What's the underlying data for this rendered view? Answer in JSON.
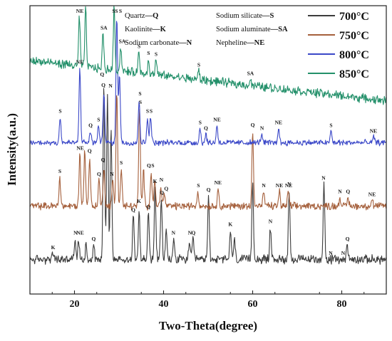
{
  "chart_data": {
    "type": "line",
    "xlabel": "Two-Theta(degree)",
    "ylabel": "Intensity(a.u.)",
    "xlim": [
      10,
      90
    ],
    "x_ticks": [
      20,
      40,
      60,
      80
    ],
    "y_ticks_shown": false,
    "grid": false,
    "legend_position": "top-right",
    "phase_key": [
      {
        "name": "Quartz",
        "symbol": "Q"
      },
      {
        "name": "Kaolinite",
        "symbol": "K"
      },
      {
        "name": "Sodium carbonate",
        "symbol": "N"
      },
      {
        "name": "Sodium silicate",
        "symbol": "S"
      },
      {
        "name": "Sodium aluminate",
        "symbol": "SA"
      },
      {
        "name": "Nepheline",
        "symbol": "NE"
      }
    ],
    "series": [
      {
        "name": "700°C",
        "color": "#3c3c3c",
        "baseline": 0.12,
        "noise": 0.012,
        "slope": 0.0,
        "peaks": [
          [
            15.2,
            0.02
          ],
          [
            20.1,
            0.06
          ],
          [
            20.9,
            0.07
          ],
          [
            22.6,
            0.05
          ],
          [
            24.3,
            0.05
          ],
          [
            26.6,
            0.62
          ],
          [
            27.4,
            0.58
          ],
          [
            28.2,
            0.46
          ],
          [
            33.2,
            0.15
          ],
          [
            34.5,
            0.18
          ],
          [
            36.6,
            0.16
          ],
          [
            38.1,
            0.25
          ],
          [
            39.5,
            0.21
          ],
          [
            40.6,
            0.1
          ],
          [
            42.3,
            0.07
          ],
          [
            45.8,
            0.06
          ],
          [
            46.6,
            0.07
          ],
          [
            50.1,
            0.22
          ],
          [
            55.0,
            0.1
          ],
          [
            55.9,
            0.07
          ],
          [
            60.0,
            0.27
          ],
          [
            64.0,
            0.11
          ],
          [
            68.2,
            0.24
          ],
          [
            76.0,
            0.26
          ],
          [
            81.2,
            0.05
          ]
        ],
        "labels": [
          [
            15.2,
            "K"
          ],
          [
            20.2,
            "N"
          ],
          [
            21.3,
            "NE"
          ],
          [
            24.3,
            "Q"
          ],
          [
            26.2,
            "Q"
          ],
          [
            28.1,
            "N"
          ],
          [
            33.2,
            "Q"
          ],
          [
            34.5,
            "K"
          ],
          [
            36.6,
            "Q"
          ],
          [
            38.1,
            "K"
          ],
          [
            39.6,
            "Q"
          ],
          [
            42.2,
            "N"
          ],
          [
            45.9,
            "N"
          ],
          [
            46.7,
            "Q"
          ],
          [
            50.1,
            "Q"
          ],
          [
            55.0,
            "K"
          ],
          [
            64.0,
            "N"
          ],
          [
            68.2,
            "N"
          ],
          [
            75.9,
            "N"
          ],
          [
            77.5,
            "N"
          ],
          [
            80.3,
            "N"
          ],
          [
            81.3,
            "Q"
          ]
        ]
      },
      {
        "name": "750°C",
        "color": "#a5603c",
        "baseline": 0.305,
        "noise": 0.01,
        "slope": 0.0,
        "peaks": [
          [
            16.7,
            0.1
          ],
          [
            21.2,
            0.18
          ],
          [
            22.3,
            0.2
          ],
          [
            23.4,
            0.17
          ],
          [
            25.5,
            0.09
          ],
          [
            26.6,
            0.14
          ],
          [
            28.6,
            0.09
          ],
          [
            29.5,
            0.4
          ],
          [
            30.5,
            0.13
          ],
          [
            34.6,
            0.34
          ],
          [
            35.5,
            0.12
          ],
          [
            37.2,
            0.12
          ],
          [
            38.0,
            0.09
          ],
          [
            39.4,
            0.07
          ],
          [
            40.2,
            0.04
          ],
          [
            47.7,
            0.05
          ],
          [
            52.3,
            0.06
          ],
          [
            60.0,
            0.26
          ],
          [
            62.5,
            0.05
          ],
          [
            66.0,
            0.05
          ],
          [
            68.0,
            0.05
          ],
          [
            79.6,
            0.03
          ],
          [
            81.4,
            0.03
          ],
          [
            86.8,
            0.02
          ]
        ],
        "labels": [
          [
            16.7,
            "S"
          ],
          [
            21.3,
            "NE"
          ],
          [
            23.4,
            "Q"
          ],
          [
            25.5,
            "Q"
          ],
          [
            26.4,
            "Q"
          ],
          [
            28.4,
            "N"
          ],
          [
            30.5,
            "S"
          ],
          [
            34.8,
            "S"
          ],
          [
            36.7,
            "Q"
          ],
          [
            37.6,
            "S"
          ],
          [
            39.5,
            "N"
          ],
          [
            40.6,
            "Q"
          ],
          [
            47.8,
            "S"
          ],
          [
            52.2,
            "NE"
          ],
          [
            60.0,
            "Q"
          ],
          [
            62.5,
            "N"
          ],
          [
            66.0,
            "NE"
          ],
          [
            68.1,
            "NE"
          ],
          [
            79.6,
            "N"
          ],
          [
            81.4,
            "Q"
          ],
          [
            86.8,
            "NE"
          ]
        ]
      },
      {
        "name": "800°C",
        "color": "#3b48c8",
        "baseline": 0.525,
        "noise": 0.008,
        "slope": 0.0,
        "peaks": [
          [
            16.8,
            0.09
          ],
          [
            21.2,
            0.26
          ],
          [
            23.6,
            0.04
          ],
          [
            25.4,
            0.06
          ],
          [
            26.6,
            0.18
          ],
          [
            29.5,
            0.44
          ],
          [
            30.1,
            0.24
          ],
          [
            34.5,
            0.15
          ],
          [
            36.4,
            0.09
          ],
          [
            37.1,
            0.09
          ],
          [
            48.2,
            0.05
          ],
          [
            49.5,
            0.03
          ],
          [
            52.0,
            0.06
          ],
          [
            62.0,
            0.03
          ],
          [
            65.8,
            0.05
          ],
          [
            77.6,
            0.04
          ],
          [
            87.2,
            0.02
          ]
        ],
        "labels": [
          [
            16.8,
            "S"
          ],
          [
            21.2,
            "NE"
          ],
          [
            23.6,
            "Q"
          ],
          [
            25.4,
            "S"
          ],
          [
            26.5,
            "Q"
          ],
          [
            29.4,
            "S"
          ],
          [
            30.3,
            "S"
          ],
          [
            34.7,
            "S"
          ],
          [
            36.4,
            "S"
          ],
          [
            37.2,
            "S"
          ],
          [
            48.2,
            "S"
          ],
          [
            49.5,
            "Q"
          ],
          [
            52.0,
            "NE"
          ],
          [
            62.1,
            "N"
          ],
          [
            65.8,
            "NE"
          ],
          [
            77.6,
            "S"
          ],
          [
            87.1,
            "NE"
          ]
        ]
      },
      {
        "name": "850°C",
        "color": "#23906a",
        "baseline": 0.81,
        "noise": 0.012,
        "slope": -0.14,
        "peaks": [
          [
            21.1,
            0.17
          ],
          [
            22.5,
            0.2
          ],
          [
            26.4,
            0.12
          ],
          [
            28.9,
            0.22
          ],
          [
            30.4,
            0.08
          ],
          [
            34.4,
            0.07
          ],
          [
            36.6,
            0.05
          ],
          [
            38.3,
            0.05
          ],
          [
            47.9,
            0.03
          ],
          [
            59.5,
            0.02
          ]
        ],
        "labels": [
          [
            21.2,
            "NE"
          ],
          [
            28.8,
            "S"
          ],
          [
            26.6,
            "SA"
          ],
          [
            30.7,
            "SA"
          ],
          [
            34.5,
            "S"
          ],
          [
            36.6,
            "S"
          ],
          [
            38.3,
            "S"
          ],
          [
            47.9,
            "S"
          ],
          [
            59.5,
            "SA"
          ]
        ]
      }
    ]
  }
}
